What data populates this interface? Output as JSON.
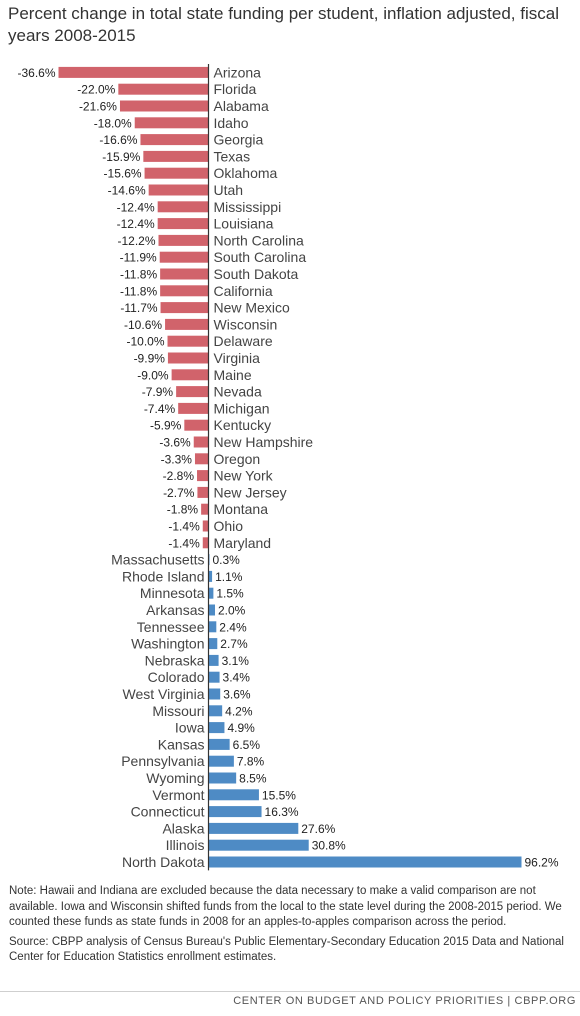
{
  "title": "Percent change in total state funding per student, inflation adjusted, fiscal years 2008-2015",
  "chart_data": {
    "type": "bar",
    "orientation": "horizontal",
    "title": "Percent change in total state funding per student, inflation adjusted, fiscal years 2008-2015",
    "categories": [
      "Arizona",
      "Florida",
      "Alabama",
      "Idaho",
      "Georgia",
      "Texas",
      "Oklahoma",
      "Utah",
      "Mississippi",
      "Louisiana",
      "North Carolina",
      "South Carolina",
      "South Dakota",
      "California",
      "New Mexico",
      "Wisconsin",
      "Delaware",
      "Virginia",
      "Maine",
      "Nevada",
      "Michigan",
      "Kentucky",
      "New Hampshire",
      "Oregon",
      "New York",
      "New Jersey",
      "Montana",
      "Ohio",
      "Maryland",
      "Massachusetts",
      "Rhode Island",
      "Minnesota",
      "Arkansas",
      "Tennessee",
      "Washington",
      "Nebraska",
      "Colorado",
      "West Virginia",
      "Missouri",
      "Iowa",
      "Kansas",
      "Pennsylvania",
      "Wyoming",
      "Vermont",
      "Connecticut",
      "Alaska",
      "Illinois",
      "North Dakota"
    ],
    "values": [
      -36.6,
      -22.0,
      -21.6,
      -18.0,
      -16.6,
      -15.9,
      -15.6,
      -14.6,
      -12.4,
      -12.4,
      -12.2,
      -11.9,
      -11.8,
      -11.8,
      -11.7,
      -10.6,
      -10.0,
      -9.9,
      -9.0,
      -7.9,
      -7.4,
      -5.9,
      -3.6,
      -3.3,
      -2.8,
      -2.7,
      -1.8,
      -1.4,
      -1.4,
      0.3,
      1.1,
      1.5,
      2.0,
      2.4,
      2.7,
      3.1,
      3.4,
      3.6,
      4.2,
      4.9,
      6.5,
      7.8,
      8.5,
      15.5,
      16.3,
      27.6,
      30.8,
      96.2
    ],
    "value_labels": [
      "-36.6%",
      "-22.0%",
      "-21.6%",
      "-18.0%",
      "-16.6%",
      "-15.9%",
      "-15.6%",
      "-14.6%",
      "-12.4%",
      "-12.4%",
      "-12.2%",
      "-11.9%",
      "-11.8%",
      "-11.8%",
      "-11.7%",
      "-10.6%",
      "-10.0%",
      "-9.9%",
      "-9.0%",
      "-7.9%",
      "-7.4%",
      "-5.9%",
      "-3.6%",
      "-3.3%",
      "-2.8%",
      "-2.7%",
      "-1.8%",
      "-1.4%",
      "-1.4%",
      "0.3%",
      "1.1%",
      "1.5%",
      "2.0%",
      "2.4%",
      "2.7%",
      "3.1%",
      "3.4%",
      "3.6%",
      "4.2%",
      "4.9%",
      "6.5%",
      "7.8%",
      "8.5%",
      "15.5%",
      "16.3%",
      "27.6%",
      "30.8%",
      "96.2%"
    ],
    "colors": {
      "negative": "#d1636b",
      "positive": "#4e8bc5"
    },
    "xlim": [
      -36.6,
      96.2
    ],
    "grid": false,
    "legend": "none"
  },
  "notes": {
    "note": "Note: Hawaii and Indiana are excluded because the data necessary to make a valid comparison are not available. Iowa and Wisconsin shifted funds from the local to the state level during the 2008-2015 period. We counted these funds as state funds in 2008 for an apples-to-apples comparison across the period.",
    "source": "Source: CBPP analysis of Census Bureau's Public Elementary-Secondary Education 2015 Data and National Center for Education Statistics enrollment estimates."
  },
  "footer": "CENTER ON BUDGET AND POLICY PRIORITIES | CBPP.ORG"
}
